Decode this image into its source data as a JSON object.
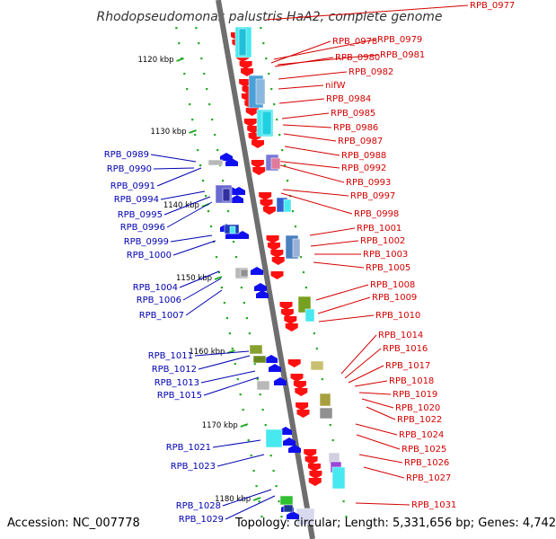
{
  "title": "Rhodopseudomonas palustris HaA2, complete genome",
  "footer": {
    "accession": "Accession: NC_007778",
    "stats": "Topology: circular; Length: 5,331,656 bp; Genes: 4,742"
  },
  "colors": {
    "right_label": "#d40000",
    "left_label": "#0000b0",
    "backbone": "#6e6e6e",
    "tick": "#22aa22"
  },
  "kbp_ticks": [
    "1120 kbp",
    "1130 kbp",
    "1140 kbp",
    "1150 kbp",
    "1160 kbp",
    "1170 kbp",
    "1180 kbp"
  ],
  "right_labels": [
    "RPB_0977",
    "RPB_0978",
    "RPB_0979",
    "RPB_0980",
    "RPB_0981",
    "RPB_0982",
    "nifW",
    "RPB_0984",
    "RPB_0985",
    "RPB_0986",
    "RPB_0987",
    "RPB_0988",
    "RPB_0992",
    "RPB_0993",
    "RPB_0997",
    "RPB_0998",
    "RPB_1001",
    "RPB_1002",
    "RPB_1003",
    "RPB_1005",
    "RPB_1008",
    "RPB_1009",
    "RPB_1010",
    "RPB_1014",
    "RPB_1016",
    "RPB_1017",
    "RPB_1018",
    "RPB_1019",
    "RPB_1020",
    "RPB_1022",
    "RPB_1024",
    "RPB_1025",
    "RPB_1026",
    "RPB_1027",
    "RPB_1031"
  ],
  "left_labels": [
    "RPB_0989",
    "RPB_0990",
    "RPB_0991",
    "RPB_0994",
    "RPB_0995",
    "RPB_0996",
    "RPB_0999",
    "RPB_1000",
    "RPB_1004",
    "RPB_1006",
    "RPB_1007",
    "RPB_1011",
    "RPB_1012",
    "RPB_1013",
    "RPB_1015",
    "RPB_1021",
    "RPB_1023",
    "RPB_1028",
    "RPB_1029"
  ]
}
